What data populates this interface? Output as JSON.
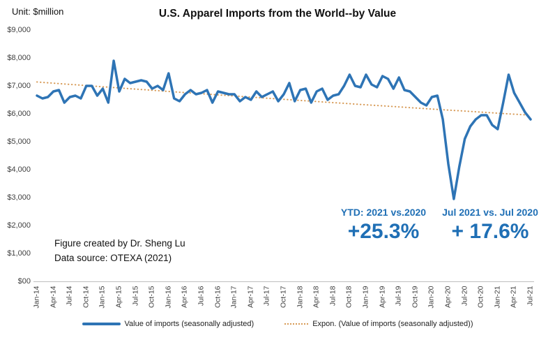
{
  "header": {
    "unit_label": "Unit: $million",
    "title": "U.S. Apparel Imports from the World--by Value"
  },
  "chart_data": {
    "type": "line",
    "title": "U.S. Apparel Imports from the World--by Value",
    "unit": "$million",
    "x_start": "Jan-14",
    "x_end": "Jul-21",
    "frequency": "monthly",
    "x_tick_labels": [
      "Jan-14",
      "Apr-14",
      "Jul-14",
      "Oct-14",
      "Jan-15",
      "Apr-15",
      "Jul-15",
      "Oct-15",
      "Jan-16",
      "Apr-16",
      "Jul-16",
      "Oct-16",
      "Jan-17",
      "Apr-17",
      "Jul-17",
      "Oct-17",
      "Jan-18",
      "Apr-18",
      "Jul-18",
      "Oct-18",
      "Jan-19",
      "Apr-19",
      "Jul-19",
      "Oct-19",
      "Jan-20",
      "Apr-20",
      "Jul-20",
      "Oct-20",
      "Jan-21",
      "Apr-21",
      "Jul-21"
    ],
    "y_tick_labels": [
      "$00",
      "$1,000",
      "$2,000",
      "$3,000",
      "$4,000",
      "$5,000",
      "$6,000",
      "$7,000",
      "$8,000",
      "$9,000"
    ],
    "ylim": [
      0,
      9000
    ],
    "gridlines": false,
    "legend_position": "bottom",
    "series": [
      {
        "name": "Value of imports (seasonally adjusted)",
        "color": "#2E74B5",
        "values": [
          6650,
          6550,
          6600,
          6800,
          6850,
          6400,
          6600,
          6650,
          6550,
          7000,
          7000,
          6650,
          6900,
          6400,
          7900,
          6800,
          7250,
          7100,
          7150,
          7200,
          7150,
          6900,
          7000,
          6850,
          7450,
          6550,
          6450,
          6700,
          6850,
          6700,
          6750,
          6850,
          6400,
          6800,
          6750,
          6700,
          6700,
          6450,
          6600,
          6500,
          6800,
          6600,
          6700,
          6800,
          6450,
          6700,
          7100,
          6450,
          6850,
          6900,
          6400,
          6800,
          6900,
          6500,
          6650,
          6700,
          7000,
          7400,
          7000,
          6950,
          7400,
          7050,
          6950,
          7350,
          7250,
          6900,
          7300,
          6850,
          6800,
          6600,
          6400,
          6300,
          6600,
          6650,
          5800,
          4200,
          2950,
          4100,
          5100,
          5550,
          5800,
          5950,
          5950,
          5600,
          5450,
          6400,
          7400,
          6750,
          6400,
          6050,
          5800
        ]
      }
    ],
    "trendline": {
      "name": "Expon. (Value of imports (seasonally adjusted))",
      "type": "exponential",
      "color": "#D79A56",
      "start_value": 7140,
      "end_value": 5950
    }
  },
  "annotations": {
    "accent_color": "#1F6FB5",
    "ytd": {
      "label": "YTD: 2021  vs.2020",
      "value": "+25.3%"
    },
    "jul": {
      "label": "Jul 2021 vs. Jul 2020",
      "value": "+ 17.6%"
    }
  },
  "credits": {
    "line1": "Figure created by Dr. Sheng Lu",
    "line2": "Data source: OTEXA (2021)"
  },
  "legend": {
    "series_label": "Value of imports (seasonally adjusted)",
    "trend_label": "Expon. (Value of imports (seasonally adjusted))"
  }
}
